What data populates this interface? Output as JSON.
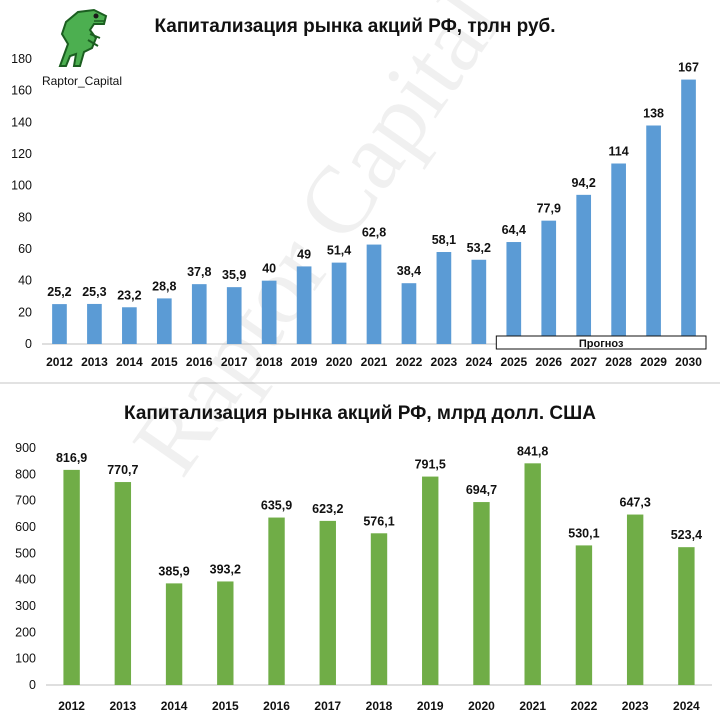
{
  "logo": {
    "text": "Raptor_Capital",
    "icon": "dinosaur-mascot-icon"
  },
  "watermark": "Raptor Capital",
  "chart_data": [
    {
      "type": "bar",
      "title": "Капитализация рынка акций РФ, трлн руб.",
      "categories": [
        "2012",
        "2013",
        "2014",
        "2015",
        "2016",
        "2017",
        "2018",
        "2019",
        "2020",
        "2021",
        "2022",
        "2023",
        "2024",
        "2025",
        "2026",
        "2027",
        "2028",
        "2029",
        "2030"
      ],
      "values": [
        25.2,
        25.3,
        23.2,
        28.8,
        37.8,
        35.9,
        40,
        49,
        51.4,
        62.8,
        38.4,
        58.1,
        53.2,
        64.4,
        77.9,
        94.2,
        114,
        138,
        167
      ],
      "value_labels": [
        "25,2",
        "25,3",
        "23,2",
        "28,8",
        "37,8",
        "35,9",
        "40",
        "49",
        "51,4",
        "62,8",
        "38,4",
        "58,1",
        "53,2",
        "64,4",
        "77,9",
        "94,2",
        "114",
        "138",
        "167"
      ],
      "ylim": [
        0,
        180
      ],
      "yticks": [
        0,
        20,
        40,
        60,
        80,
        100,
        120,
        140,
        160,
        180
      ],
      "color": "#5b9bd5",
      "forecast": {
        "label": "Прогноз",
        "from": "2025",
        "to": "2030"
      },
      "grid": false
    },
    {
      "type": "bar",
      "title": "Капитализация рынка акций РФ, млрд долл. США",
      "categories": [
        "2012",
        "2013",
        "2014",
        "2015",
        "2016",
        "2017",
        "2018",
        "2019",
        "2020",
        "2021",
        "2022",
        "2023",
        "2024"
      ],
      "values": [
        816.9,
        770.7,
        385.9,
        393.2,
        635.9,
        623.2,
        576.1,
        791.5,
        694.7,
        841.8,
        530.1,
        647.3,
        523.4
      ],
      "value_labels": [
        "816,9",
        "770,7",
        "385,9",
        "393,2",
        "635,9",
        "623,2",
        "576,1",
        "791,5",
        "694,7",
        "841,8",
        "530,1",
        "647,3",
        "523,4"
      ],
      "ylim": [
        0,
        900
      ],
      "yticks": [
        0,
        100,
        200,
        300,
        400,
        500,
        600,
        700,
        800,
        900
      ],
      "color": "#70ad47",
      "grid": false
    }
  ]
}
